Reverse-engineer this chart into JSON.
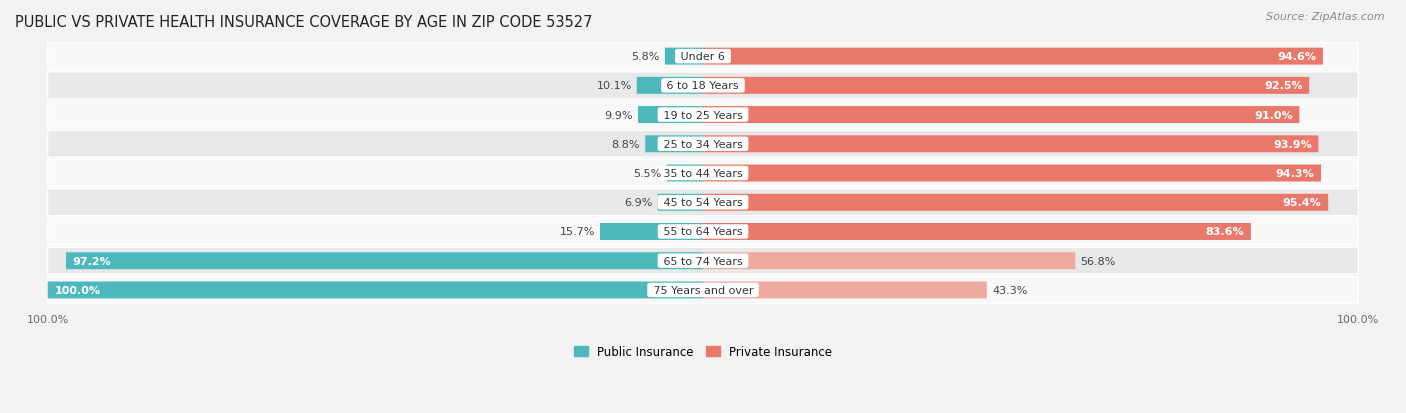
{
  "title": "PUBLIC VS PRIVATE HEALTH INSURANCE COVERAGE BY AGE IN ZIP CODE 53527",
  "source": "Source: ZipAtlas.com",
  "categories": [
    "Under 6",
    "6 to 18 Years",
    "19 to 25 Years",
    "25 to 34 Years",
    "35 to 44 Years",
    "45 to 54 Years",
    "55 to 64 Years",
    "65 to 74 Years",
    "75 Years and over"
  ],
  "public_values": [
    5.8,
    10.1,
    9.9,
    8.8,
    5.5,
    6.9,
    15.7,
    97.2,
    100.0
  ],
  "private_values": [
    94.6,
    92.5,
    91.0,
    93.9,
    94.3,
    95.4,
    83.6,
    56.8,
    43.3
  ],
  "public_color": "#4db8bc",
  "private_color_dark": "#e8786a",
  "private_color_light": "#f0a99e",
  "bg_color": "#f2f2f2",
  "row_bg_light": "#f8f8f8",
  "row_bg_dark": "#e8e8e8",
  "title_fontsize": 10.5,
  "source_fontsize": 8,
  "label_fontsize": 8,
  "value_fontsize": 8,
  "legend_fontsize": 8.5,
  "axis_label_fontsize": 8,
  "max_val": 100.0,
  "figsize": [
    14.06,
    4.14
  ],
  "dpi": 100,
  "private_threshold": 70.0
}
